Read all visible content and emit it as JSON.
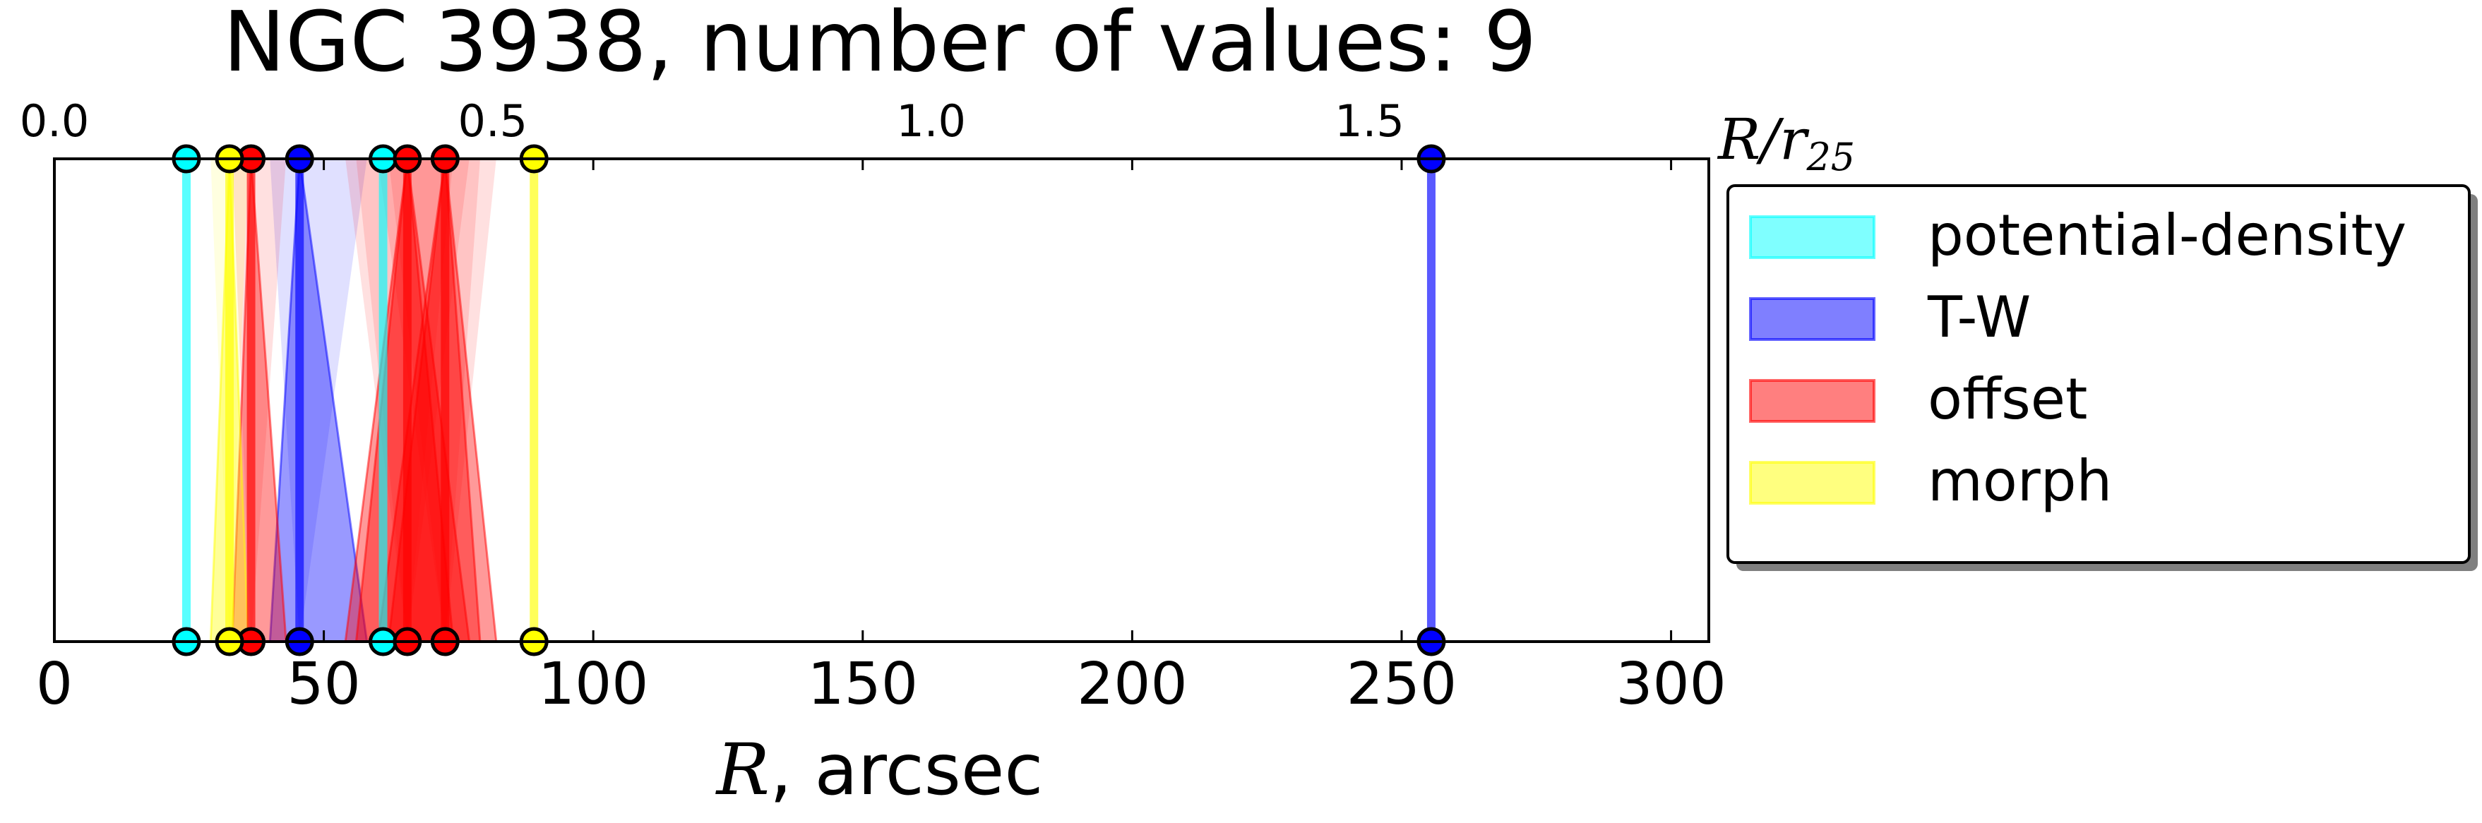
{
  "chart_data": {
    "type": "scatter",
    "title": "NGC 3938, number of values: 9",
    "xlabel_italic": "R",
    "xlabel_rest": ", arcsec",
    "top_axis_label_main": "R/r",
    "top_axis_label_sub": "25",
    "xlim": [
      0,
      307
    ],
    "top_xlim": [
      0,
      1.887
    ],
    "x_ticks": [
      "0",
      "50",
      "100",
      "150",
      "200",
      "250",
      "300"
    ],
    "top_ticks": [
      "0.0",
      "0.5",
      "1.0",
      "1.5"
    ],
    "legend_position": "right",
    "series": [
      {
        "name": "potential-density",
        "color": "#00ffff",
        "markers": [
          24.5,
          61.0
        ],
        "spans": []
      },
      {
        "name": "T-W",
        "color": "#0000ff",
        "markers": [
          45.5,
          255.5
        ],
        "spans": [
          [
            40,
            45.5,
            58
          ]
        ]
      },
      {
        "name": "offset",
        "color": "#ff0000",
        "markers": [
          36.5,
          65.5,
          72.5
        ],
        "spans": [
          [
            33,
            36.5,
            43
          ],
          [
            54,
            65.5,
            74
          ],
          [
            56,
            65.5,
            77
          ],
          [
            60,
            72.5,
            82
          ],
          [
            62,
            72.5,
            79
          ]
        ]
      },
      {
        "name": "morph",
        "color": "#ffff00",
        "markers": [
          32.5,
          89.0
        ],
        "spans": [
          [
            29,
            32.5,
            36
          ]
        ]
      }
    ]
  }
}
